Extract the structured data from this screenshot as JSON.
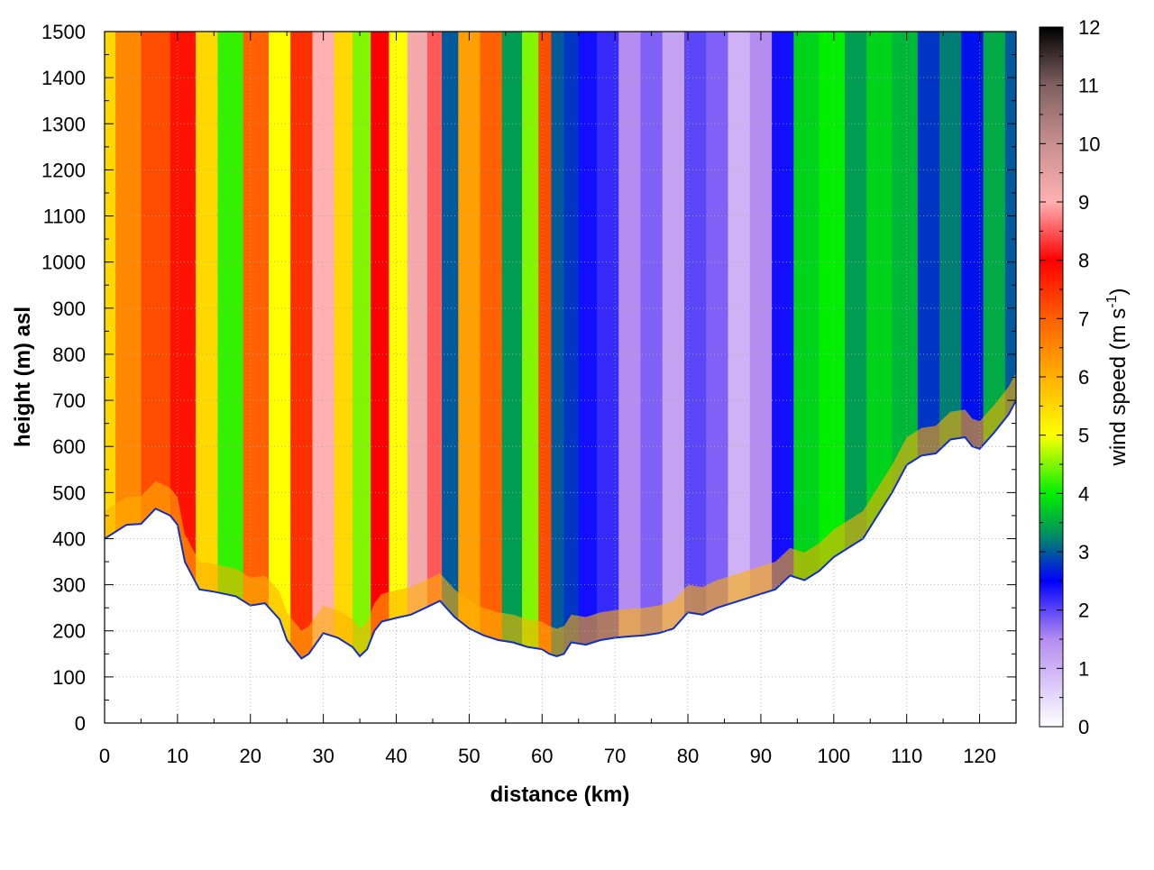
{
  "chart_data": {
    "type": "heatmap",
    "title": "",
    "xlabel": "distance (km)",
    "ylabel": "height (m) asl",
    "xlim": [
      0,
      125
    ],
    "ylim": [
      0,
      1500
    ],
    "x_ticks": [
      "0",
      "10",
      "20",
      "30",
      "40",
      "50",
      "60",
      "70",
      "80",
      "90",
      "100",
      "110",
      "120"
    ],
    "y_ticks": [
      "0",
      "100",
      "200",
      "300",
      "400",
      "500",
      "600",
      "700",
      "800",
      "900",
      "1000",
      "1100",
      "1200",
      "1300",
      "1400",
      "1500"
    ],
    "grid": true,
    "colorbar": {
      "label": "wind speed (m s",
      "label_superscript": "-1",
      "label_close": ")",
      "range": [
        0,
        12
      ],
      "ticks": [
        "0",
        "1",
        "2",
        "3",
        "4",
        "5",
        "6",
        "7",
        "8",
        "9",
        "10",
        "11",
        "12"
      ],
      "stops": [
        {
          "value": 0,
          "color": "#ffffff"
        },
        {
          "value": 1.5,
          "color": "#b58cf0"
        },
        {
          "value": 2.5,
          "color": "#0000ff"
        },
        {
          "value": 3.3,
          "color": "#009060"
        },
        {
          "value": 4.0,
          "color": "#00ee00"
        },
        {
          "value": 5.0,
          "color": "#ffff00"
        },
        {
          "value": 6.0,
          "color": "#ffb000"
        },
        {
          "value": 7.0,
          "color": "#ff6000"
        },
        {
          "value": 8.0,
          "color": "#ff0000"
        },
        {
          "value": 9.0,
          "color": "#ffb0b0"
        },
        {
          "value": 10.0,
          "color": "#c89090"
        },
        {
          "value": 11.0,
          "color": "#806060"
        },
        {
          "value": 12.0,
          "color": "#000000"
        }
      ]
    },
    "terrain_profile": {
      "distance_km": [
        0,
        3,
        5,
        7,
        9,
        10,
        11,
        13,
        15,
        18,
        20,
        22,
        24,
        25,
        26,
        27,
        28,
        30,
        32,
        34,
        35,
        36,
        37,
        38,
        40,
        42,
        44,
        46,
        48,
        50,
        52,
        54,
        56,
        58,
        60,
        61,
        62,
        63,
        64,
        66,
        68,
        70,
        72,
        74,
        76,
        78,
        80,
        82,
        84,
        86,
        88,
        90,
        92,
        94,
        96,
        98,
        100,
        102,
        104,
        106,
        108,
        110,
        112,
        114,
        116,
        118,
        119,
        120,
        122,
        124,
        125
      ],
      "ground_height_m": [
        400,
        430,
        432,
        465,
        450,
        430,
        350,
        290,
        285,
        275,
        255,
        260,
        225,
        180,
        160,
        140,
        150,
        195,
        185,
        165,
        145,
        160,
        200,
        220,
        228,
        235,
        250,
        265,
        230,
        205,
        190,
        180,
        175,
        165,
        160,
        150,
        145,
        150,
        175,
        170,
        180,
        185,
        188,
        190,
        195,
        205,
        240,
        235,
        250,
        260,
        270,
        280,
        290,
        320,
        310,
        330,
        360,
        380,
        400,
        450,
        500,
        560,
        580,
        585,
        615,
        620,
        600,
        595,
        630,
        670,
        700
      ]
    },
    "wind_speed_bands": [
      {
        "x_center_km": 0,
        "speed_m_s": 5.5
      },
      {
        "x_center_km": 3,
        "speed_m_s": 6.5
      },
      {
        "x_center_km": 7,
        "speed_m_s": 7.2
      },
      {
        "x_center_km": 11,
        "speed_m_s": 7.8
      },
      {
        "x_center_km": 14,
        "speed_m_s": 5.5
      },
      {
        "x_center_km": 17,
        "speed_m_s": 4.2
      },
      {
        "x_center_km": 21,
        "speed_m_s": 7.0
      },
      {
        "x_center_km": 24,
        "speed_m_s": 5.0
      },
      {
        "x_center_km": 27,
        "speed_m_s": 7.5
      },
      {
        "x_center_km": 30,
        "speed_m_s": 9.0
      },
      {
        "x_center_km": 33,
        "speed_m_s": 5.5
      },
      {
        "x_center_km": 35,
        "speed_m_s": 4.5
      },
      {
        "x_center_km": 38,
        "speed_m_s": 8.0
      },
      {
        "x_center_km": 40,
        "speed_m_s": 5.0
      },
      {
        "x_center_km": 43,
        "speed_m_s": 9.2
      },
      {
        "x_center_km": 45.5,
        "speed_m_s": 8.5
      },
      {
        "x_center_km": 47,
        "speed_m_s": 3.0
      },
      {
        "x_center_km": 50,
        "speed_m_s": 6.2
      },
      {
        "x_center_km": 53,
        "speed_m_s": 7.0
      },
      {
        "x_center_km": 56,
        "speed_m_s": 3.4
      },
      {
        "x_center_km": 58.5,
        "speed_m_s": 4.5
      },
      {
        "x_center_km": 60.5,
        "speed_m_s": 7.2
      },
      {
        "x_center_km": 62,
        "speed_m_s": 3.0
      },
      {
        "x_center_km": 64,
        "speed_m_s": 2.8
      },
      {
        "x_center_km": 66,
        "speed_m_s": 2.4
      },
      {
        "x_center_km": 69,
        "speed_m_s": 2.2
      },
      {
        "x_center_km": 72,
        "speed_m_s": 1.5
      },
      {
        "x_center_km": 75,
        "speed_m_s": 1.8
      },
      {
        "x_center_km": 78,
        "speed_m_s": 1.2
      },
      {
        "x_center_km": 81,
        "speed_m_s": 2.0
      },
      {
        "x_center_km": 84,
        "speed_m_s": 1.8
      },
      {
        "x_center_km": 87,
        "speed_m_s": 1.0
      },
      {
        "x_center_km": 90,
        "speed_m_s": 1.5
      },
      {
        "x_center_km": 93,
        "speed_m_s": 2.4
      },
      {
        "x_center_km": 96,
        "speed_m_s": 3.8
      },
      {
        "x_center_km": 100,
        "speed_m_s": 4.0
      },
      {
        "x_center_km": 103,
        "speed_m_s": 3.4
      },
      {
        "x_center_km": 106,
        "speed_m_s": 3.8
      },
      {
        "x_center_km": 110,
        "speed_m_s": 3.6
      },
      {
        "x_center_km": 113,
        "speed_m_s": 2.8
      },
      {
        "x_center_km": 116,
        "speed_m_s": 3.2
      },
      {
        "x_center_km": 119,
        "speed_m_s": 2.6
      },
      {
        "x_center_km": 122,
        "speed_m_s": 3.5
      },
      {
        "x_center_km": 125,
        "speed_m_s": 3.0
      }
    ],
    "near_surface_speed_m_s": 6.0
  }
}
